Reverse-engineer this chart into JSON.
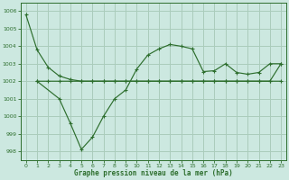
{
  "background_color": "#cce8e0",
  "grid_color": "#aaccbb",
  "line_color": "#2d6e2d",
  "xlabel": "Graphe pression niveau de la mer (hPa)",
  "xlim": [
    -0.5,
    23.5
  ],
  "ylim": [
    997.5,
    1006.5
  ],
  "yticks": [
    998,
    999,
    1000,
    1001,
    1002,
    1003,
    1004,
    1005,
    1006
  ],
  "xticks": [
    0,
    1,
    2,
    3,
    4,
    5,
    6,
    7,
    8,
    9,
    10,
    11,
    12,
    13,
    14,
    15,
    16,
    17,
    18,
    19,
    20,
    21,
    22,
    23
  ],
  "line1_x": [
    0,
    1,
    2,
    3,
    4,
    5,
    6,
    7,
    8,
    9,
    10,
    11,
    12,
    13,
    14,
    15,
    16,
    17,
    18,
    19,
    20,
    21,
    22,
    23
  ],
  "line1_y": [
    1005.8,
    1003.8,
    1002.8,
    1002.3,
    1002.1,
    1002.0,
    1002.0,
    1002.0,
    1002.0,
    1002.0,
    1002.0,
    1002.0,
    1002.0,
    1002.0,
    1002.0,
    1002.0,
    1002.0,
    1002.0,
    1002.0,
    1002.0,
    1002.0,
    1002.0,
    1002.0,
    1002.0
  ],
  "line2_x": [
    1,
    2,
    3,
    4,
    5,
    6,
    7,
    8,
    9,
    10,
    11,
    12,
    13,
    14,
    15,
    16,
    17,
    18,
    19,
    20,
    21,
    22,
    23
  ],
  "line2_y": [
    1002.0,
    1002.0,
    1002.0,
    1002.0,
    1002.0,
    1002.0,
    1002.0,
    1002.0,
    1002.0,
    1002.0,
    1002.0,
    1002.0,
    1002.0,
    1002.0,
    1002.0,
    1002.0,
    1002.0,
    1002.0,
    1002.0,
    1002.0,
    1002.0,
    1002.0,
    1003.0
  ],
  "line3_x": [
    1,
    3,
    4,
    5,
    6,
    7,
    8,
    9,
    10,
    11,
    12,
    13,
    14,
    15,
    16,
    17,
    18,
    19,
    20,
    21,
    22,
    23
  ],
  "line3_y": [
    1002.0,
    1001.0,
    999.6,
    998.1,
    998.8,
    1000.0,
    1001.0,
    1001.5,
    1002.7,
    1003.5,
    1003.85,
    1004.1,
    1004.0,
    1003.85,
    1002.55,
    1002.6,
    1003.0,
    1002.5,
    1002.4,
    1002.5,
    1003.0,
    1003.0
  ]
}
